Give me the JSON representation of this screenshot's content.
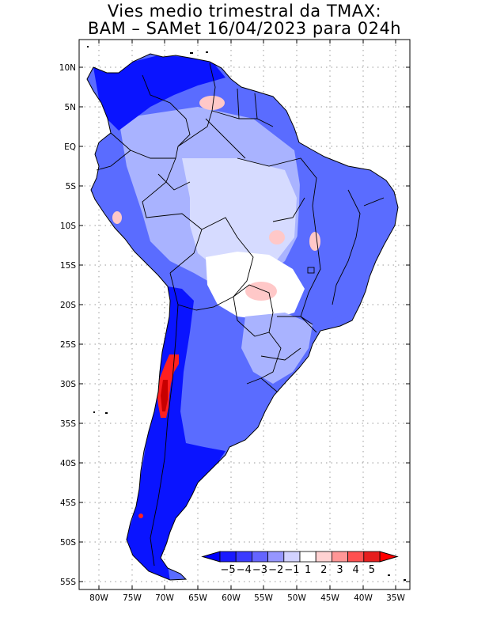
{
  "title": {
    "line1": "Vies medio trimestral da TMAX:",
    "line2": "BAM – SAMet 16/04/2023  para 024h"
  },
  "axes": {
    "lat_labels": [
      "10N",
      "5N",
      "EQ",
      "5S",
      "10S",
      "15S",
      "20S",
      "25S",
      "30S",
      "35S",
      "40S",
      "45S",
      "50S",
      "55S"
    ],
    "lon_labels": [
      "80W",
      "75W",
      "70W",
      "65W",
      "60W",
      "55W",
      "50W",
      "45W",
      "40W",
      "35W"
    ]
  },
  "colorbar": {
    "labels": [
      "−5",
      "−4",
      "−3",
      "−2",
      "−1",
      "1",
      "2",
      "3",
      "4",
      "5"
    ],
    "colors": [
      "#1a1aff",
      "#3c3cff",
      "#6464ff",
      "#9696ff",
      "#d2d2ff",
      "#ffffff",
      "#ffd2d2",
      "#ff9696",
      "#ff5050",
      "#e61e1e"
    ],
    "under_color": "#0000ff",
    "over_color": "#ff0000"
  },
  "map_colors": {
    "deep_blue": "#0a14ff",
    "mid_blue": "#5a6cff",
    "light_blue": "#a9b3ff",
    "pale_blue": "#d6dbff",
    "white": "#ffffff",
    "pink": "#ffc8c8",
    "red": "#ff2020",
    "dark_red": "#c80000"
  }
}
